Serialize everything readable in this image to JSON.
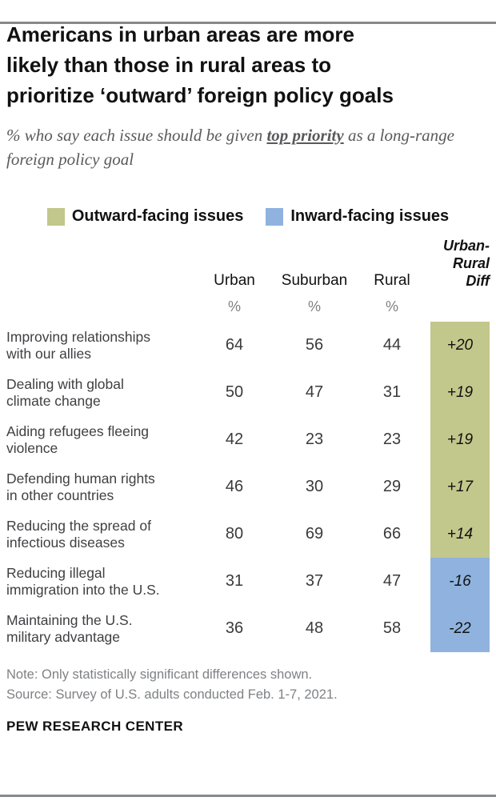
{
  "colors": {
    "outward_green": "#c2c78b",
    "inward_blue": "#8fb3de",
    "rule_gray": "#86898c",
    "muted_text": "#7f8184"
  },
  "header": {
    "title_lines": [
      "Americans in urban areas are more",
      "likely than those in rural areas to",
      "prioritize ‘outward’ foreign policy goals"
    ],
    "subtitle_prefix": "% who say each issue should be given ",
    "subtitle_emphasis": "top priority",
    "subtitle_suffix": " as a long-range foreign policy goal"
  },
  "legend": {
    "outward_label": "Outward-facing issues",
    "inward_label": "Inward-facing issues"
  },
  "table": {
    "diff_header_lines": [
      "Urban-",
      "Rural",
      "Diff"
    ],
    "col_urban": "Urban",
    "col_suburban": "Suburban",
    "col_rural": "Rural",
    "percent": "%",
    "rows": [
      {
        "label": "Improving relationships\nwith our allies",
        "urban": 64,
        "suburban": 56,
        "rural": 44,
        "diff": "+20",
        "category": "outward"
      },
      {
        "label": "Dealing with global\nclimate change",
        "urban": 50,
        "suburban": 47,
        "rural": 31,
        "diff": "+19",
        "category": "outward"
      },
      {
        "label": "Aiding refugees fleeing\nviolence",
        "urban": 42,
        "suburban": 23,
        "rural": 23,
        "diff": "+19",
        "category": "outward"
      },
      {
        "label": "Defending human rights\nin other countries",
        "urban": 46,
        "suburban": 30,
        "rural": 29,
        "diff": "+17",
        "category": "outward"
      },
      {
        "label": "Reducing the spread of\ninfectious diseases",
        "urban": 80,
        "suburban": 69,
        "rural": 66,
        "diff": "+14",
        "category": "outward"
      },
      {
        "label": "Reducing illegal\nimmigration into the U.S.",
        "urban": 31,
        "suburban": 37,
        "rural": 47,
        "diff": "-16",
        "category": "inward"
      },
      {
        "label": "Maintaining the U.S.\nmilitary advantage",
        "urban": 36,
        "suburban": 48,
        "rural": 58,
        "diff": "-22",
        "category": "inward"
      }
    ]
  },
  "footer": {
    "note": "Note: Only statistically significant differences shown.",
    "source": "Source: Survey of U.S. adults conducted Feb. 1-7, 2021.",
    "brand": "PEW RESEARCH CENTER"
  },
  "chart_data": {
    "type": "table",
    "title": "Americans in urban areas are more likely than those in rural areas to prioritize ‘outward’ foreign policy goals",
    "subtitle": "% who say each issue should be given top priority as a long-range foreign policy goal",
    "categories": [
      "Improving relationships with our allies",
      "Dealing with global climate change",
      "Aiding refugees fleeing violence",
      "Defending human rights in other countries",
      "Reducing the spread of infectious diseases",
      "Reducing illegal immigration into the U.S.",
      "Maintaining the U.S. military advantage"
    ],
    "series": [
      {
        "name": "Urban",
        "values": [
          64,
          50,
          42,
          46,
          80,
          31,
          36
        ]
      },
      {
        "name": "Suburban",
        "values": [
          56,
          47,
          23,
          30,
          69,
          37,
          48
        ]
      },
      {
        "name": "Rural",
        "values": [
          44,
          31,
          23,
          29,
          66,
          47,
          58
        ]
      },
      {
        "name": "Urban-Rural Diff",
        "values": [
          20,
          19,
          19,
          17,
          14,
          -16,
          -22
        ]
      }
    ],
    "row_groups": [
      "outward",
      "outward",
      "outward",
      "outward",
      "outward",
      "inward",
      "inward"
    ],
    "legend": [
      "Outward-facing issues",
      "Inward-facing issues"
    ],
    "legend_colors": [
      "#c2c78b",
      "#8fb3de"
    ]
  }
}
